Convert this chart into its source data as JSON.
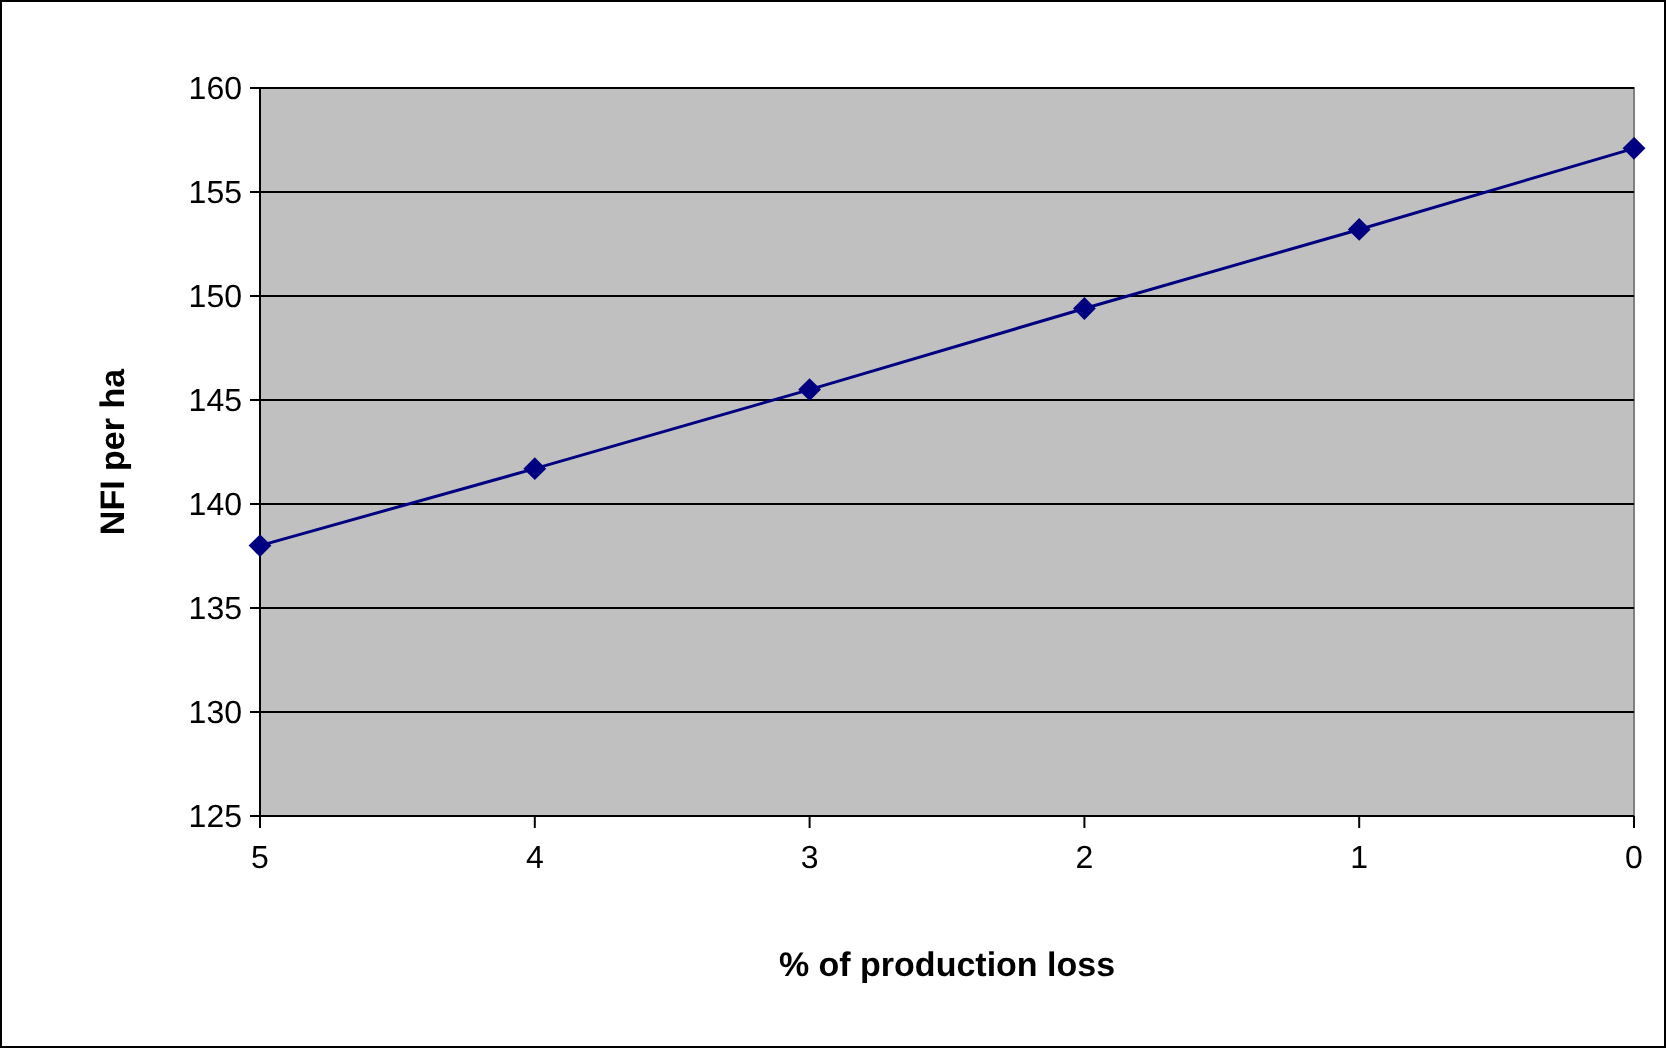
{
  "chart_data": {
    "type": "line",
    "xlabel": "% of production loss",
    "ylabel": "NFI per ha",
    "categories": [
      "5",
      "4",
      "3",
      "2",
      "1",
      "0"
    ],
    "series": [
      {
        "color": "#000080",
        "values": [
          138.0,
          141.7,
          145.5,
          149.4,
          153.2,
          157.1
        ]
      }
    ],
    "ylim": [
      125,
      160
    ],
    "yticks": [
      125,
      130,
      135,
      140,
      145,
      150,
      155,
      160
    ],
    "grid": "y",
    "marker": "diamond",
    "line_style": "solid"
  }
}
